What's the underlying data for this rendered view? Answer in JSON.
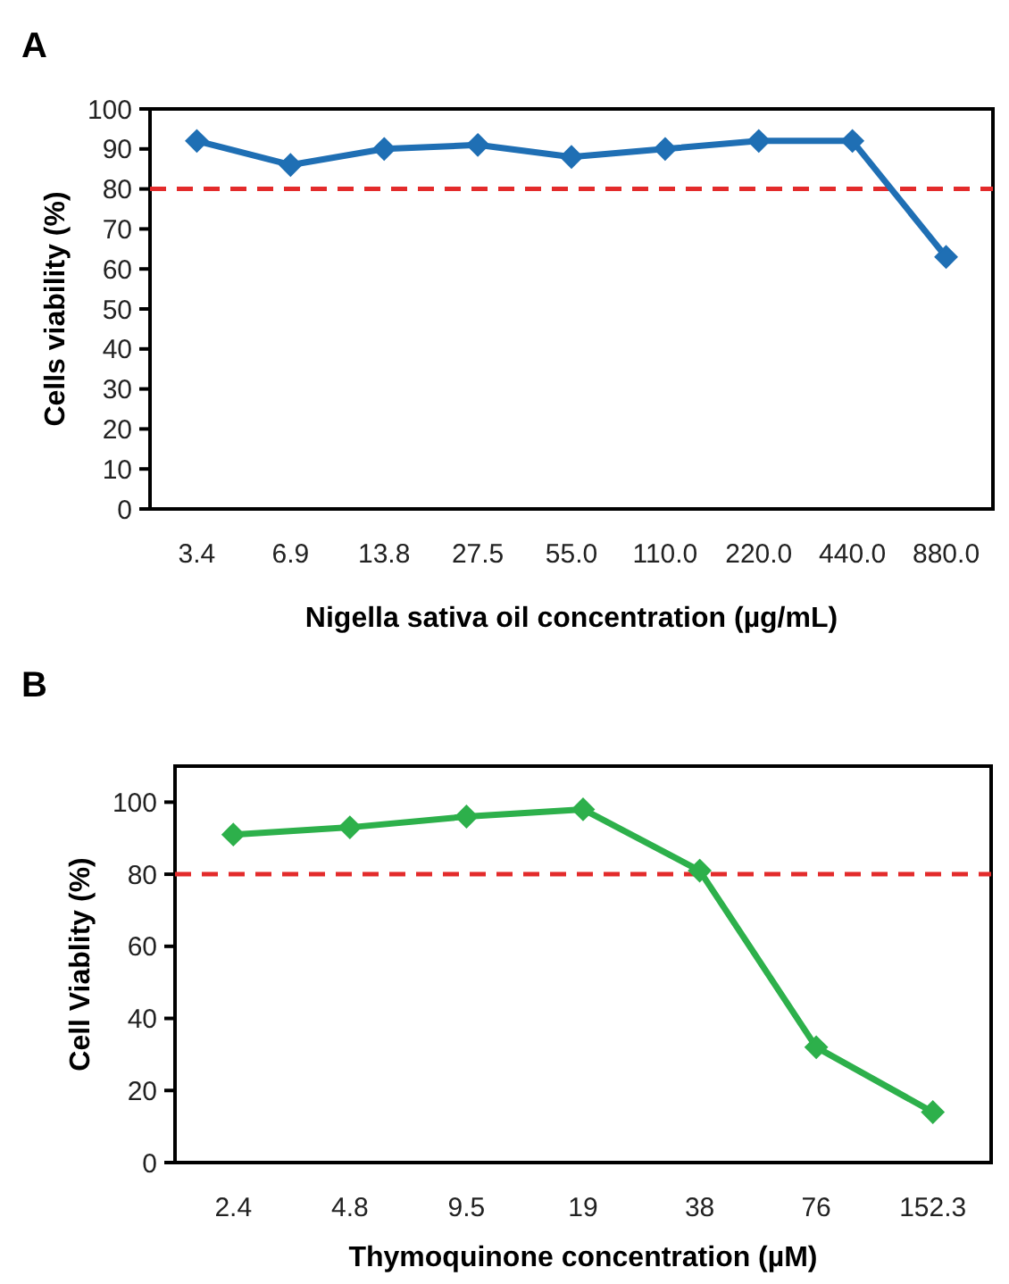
{
  "chart_data": [
    {
      "type": "line",
      "title": "A",
      "xlabel": "Nigella sativa oil concentration (µg/mL)",
      "ylabel": "Cells viability (%)",
      "categories": [
        "3.4",
        "6.9",
        "13.8",
        "27.5",
        "55.0",
        "110.0",
        "220.0",
        "440.0",
        "880.0"
      ],
      "series": [
        {
          "color": "#1f6fb4",
          "values": [
            92,
            86,
            90,
            91,
            88,
            90,
            92,
            92,
            63
          ]
        }
      ],
      "ylim": [
        0,
        100
      ],
      "yticks": [
        0,
        10,
        20,
        30,
        40,
        50,
        60,
        70,
        80,
        90,
        100
      ],
      "marker": "diamond",
      "line_style": "solid",
      "grid": false,
      "ref_lines": [
        {
          "axis": "y",
          "value": 80,
          "color": "#e32b2b",
          "line_style": "dashed"
        }
      ]
    },
    {
      "type": "line",
      "title": "B",
      "xlabel": "Thymoquinone concentration (µM)",
      "ylabel": "Cell Viablity (%)",
      "categories": [
        "2.4",
        "4.8",
        "9.5",
        "19",
        "38",
        "76",
        "152.3"
      ],
      "series": [
        {
          "color": "#2db04b",
          "values": [
            91,
            93,
            96,
            98,
            81,
            32,
            14
          ]
        }
      ],
      "ylim": [
        0,
        110
      ],
      "yticks": [
        0,
        20,
        40,
        60,
        80,
        100
      ],
      "marker": "diamond",
      "line_style": "solid",
      "grid": false,
      "ref_lines": [
        {
          "axis": "y",
          "value": 80,
          "color": "#e32b2b",
          "line_style": "dashed"
        }
      ]
    }
  ]
}
